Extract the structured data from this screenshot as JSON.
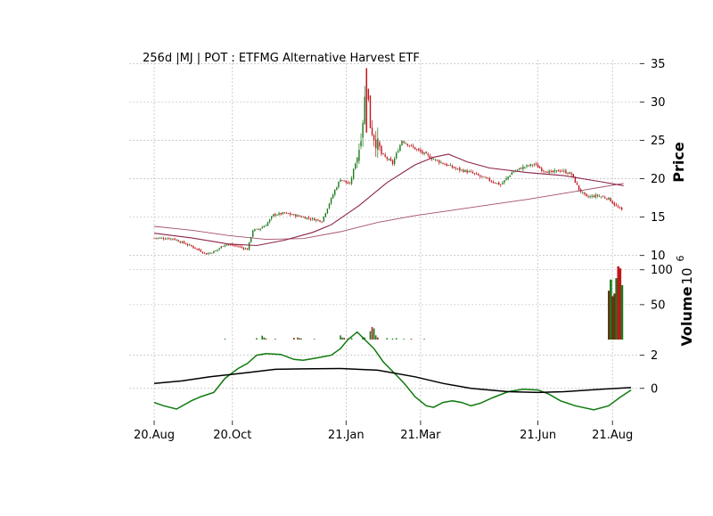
{
  "chart_data": [
    {
      "panel": "price",
      "type": "candlestick",
      "title": "256d |MJ | POT : ETFMG Alternative Harvest ETF",
      "ylabel": "Price",
      "ylim": [
        9.5,
        35.5
      ],
      "yticks": [
        10,
        15,
        20,
        25,
        30,
        35
      ],
      "xticks": [
        {
          "label": "20.Aug",
          "x": 0
        },
        {
          "label": "20.Oct",
          "x": 42
        },
        {
          "label": "21.Jan",
          "x": 103
        },
        {
          "label": "21.Mar",
          "x": 143
        },
        {
          "label": "21.Jun",
          "x": 206
        },
        {
          "label": "21.Aug",
          "x": 246
        }
      ],
      "xlim": [
        -1,
        256
      ],
      "grid": true,
      "close_series": [
        [
          0,
          12.3
        ],
        [
          10,
          12.2
        ],
        [
          20,
          11.2
        ],
        [
          28,
          10.2
        ],
        [
          33,
          10.6
        ],
        [
          38,
          11.5
        ],
        [
          45,
          11.2
        ],
        [
          50,
          10.8
        ],
        [
          53,
          13.3
        ],
        [
          56,
          13.4
        ],
        [
          60,
          14.0
        ],
        [
          64,
          15.3
        ],
        [
          70,
          15.5
        ],
        [
          80,
          15.0
        ],
        [
          90,
          14.5
        ],
        [
          94,
          16.8
        ],
        [
          97,
          18.5
        ],
        [
          100,
          20.0
        ],
        [
          105,
          19.2
        ],
        [
          110,
          24.0
        ],
        [
          112,
          27.8
        ],
        [
          114,
          33.0
        ],
        [
          116,
          27.0
        ],
        [
          118,
          25.5
        ],
        [
          122,
          23.2
        ],
        [
          128,
          22.0
        ],
        [
          133,
          25.0
        ],
        [
          138,
          24.2
        ],
        [
          143,
          23.5
        ],
        [
          148,
          22.8
        ],
        [
          155,
          22.0
        ],
        [
          162,
          21.3
        ],
        [
          170,
          20.8
        ],
        [
          178,
          20.0
        ],
        [
          186,
          19.2
        ],
        [
          192,
          20.8
        ],
        [
          198,
          21.5
        ],
        [
          204,
          21.9
        ],
        [
          208,
          21.2
        ],
        [
          213,
          20.8
        ],
        [
          218,
          21.1
        ],
        [
          224,
          20.6
        ],
        [
          228,
          18.6
        ],
        [
          232,
          17.6
        ],
        [
          238,
          17.8
        ],
        [
          244,
          17.4
        ],
        [
          248,
          16.4
        ],
        [
          251,
          15.9
        ]
      ],
      "moving_averages": [
        {
          "points": [
            [
              0,
              13.8
            ],
            [
              20,
              13.3
            ],
            [
              40,
              12.6
            ],
            [
              60,
              12.1
            ],
            [
              80,
              12.2
            ],
            [
              100,
              13.1
            ],
            [
              120,
              14.3
            ],
            [
              140,
              15.2
            ],
            [
              160,
              15.9
            ],
            [
              180,
              16.6
            ],
            [
              200,
              17.3
            ],
            [
              220,
              18.1
            ],
            [
              240,
              18.9
            ],
            [
              252,
              19.4
            ]
          ]
        },
        {
          "points": [
            [
              0,
              12.9
            ],
            [
              20,
              12.3
            ],
            [
              40,
              11.5
            ],
            [
              55,
              11.3
            ],
            [
              70,
              12.0
            ],
            [
              85,
              13.0
            ],
            [
              95,
              14.0
            ],
            [
              110,
              16.5
            ],
            [
              125,
              19.5
            ],
            [
              140,
              21.8
            ],
            [
              150,
              22.8
            ],
            [
              158,
              23.2
            ],
            [
              168,
              22.2
            ],
            [
              180,
              21.4
            ],
            [
              200,
              20.8
            ],
            [
              220,
              20.4
            ],
            [
              240,
              19.6
            ],
            [
              252,
              19.1
            ]
          ]
        }
      ],
      "colors": {
        "up": "#1a7a1a",
        "down": "#c0161d",
        "ma": "#8b2346",
        "grid": "#b0b0b0"
      }
    },
    {
      "panel": "volume",
      "type": "bar",
      "ylabel": "Volume",
      "scale_label": "10",
      "scale_exponent": "6",
      "ylim": [
        0,
        115
      ],
      "yticks": [
        50,
        100
      ],
      "bars": [
        [
          38,
          1.2
        ],
        [
          55,
          2.0
        ],
        [
          58,
          5.5
        ],
        [
          59,
          3.0
        ],
        [
          60,
          1.5
        ],
        [
          65,
          1.2
        ],
        [
          75,
          2.5
        ],
        [
          77,
          3.0
        ],
        [
          78,
          2.0
        ],
        [
          79,
          1.5
        ],
        [
          86,
          1.0
        ],
        [
          100,
          6.0
        ],
        [
          101,
          3.0
        ],
        [
          102,
          2.5
        ],
        [
          104,
          1.5
        ],
        [
          106,
          2.0
        ],
        [
          112,
          4.0
        ],
        [
          113,
          3.0
        ],
        [
          116,
          12.0
        ],
        [
          117,
          18.0
        ],
        [
          118,
          16.0
        ],
        [
          119,
          6.0
        ],
        [
          120,
          3.0
        ],
        [
          125,
          2.0
        ],
        [
          128,
          1.5
        ],
        [
          130,
          2.0
        ],
        [
          134,
          1.0
        ],
        [
          138,
          1.2
        ],
        [
          145,
          1.0
        ]
      ],
      "recent_bars": [
        {
          "value": 70,
          "color": "#6b3014"
        },
        {
          "value": 86,
          "color": "#1a7a1a"
        },
        {
          "value": 62,
          "color": "#6b3014"
        },
        {
          "value": 66,
          "color": "#6b3014"
        },
        {
          "value": 88,
          "color": "#1a7a1a"
        },
        {
          "value": 105,
          "color": "#c0161d"
        },
        {
          "value": 102,
          "color": "#c0161d"
        },
        {
          "value": 78,
          "color": "#1a7a1a"
        }
      ],
      "recent_bars_start": 244
    },
    {
      "panel": "oscillator",
      "type": "line",
      "ylim": [
        -1.95,
        2.95
      ],
      "yticks": [
        0,
        2
      ],
      "series": [
        {
          "color": "#0f7a0f",
          "points": [
            [
              0,
              -0.85
            ],
            [
              5,
              -1.05
            ],
            [
              12,
              -1.25
            ],
            [
              20,
              -0.75
            ],
            [
              25,
              -0.5
            ],
            [
              32,
              -0.25
            ],
            [
              38,
              0.6
            ],
            [
              45,
              1.2
            ],
            [
              50,
              1.5
            ],
            [
              55,
              2.0
            ],
            [
              60,
              2.1
            ],
            [
              68,
              2.05
            ],
            [
              75,
              1.75
            ],
            [
              80,
              1.7
            ],
            [
              88,
              1.85
            ],
            [
              95,
              2.0
            ],
            [
              100,
              2.4
            ],
            [
              104,
              2.95
            ],
            [
              109,
              3.4
            ],
            [
              113,
              2.95
            ],
            [
              118,
              2.4
            ],
            [
              123,
              1.6
            ],
            [
              130,
              0.8
            ],
            [
              135,
              0.2
            ],
            [
              140,
              -0.5
            ],
            [
              146,
              -1.05
            ],
            [
              150,
              -1.15
            ],
            [
              155,
              -0.85
            ],
            [
              160,
              -0.75
            ],
            [
              165,
              -0.85
            ],
            [
              170,
              -1.05
            ],
            [
              175,
              -0.9
            ],
            [
              182,
              -0.55
            ],
            [
              190,
              -0.2
            ],
            [
              198,
              -0.05
            ],
            [
              206,
              -0.1
            ],
            [
              212,
              -0.35
            ],
            [
              218,
              -0.75
            ],
            [
              226,
              -1.05
            ],
            [
              236,
              -1.3
            ],
            [
              244,
              -1.05
            ],
            [
              250,
              -0.55
            ],
            [
              256,
              -0.1
            ]
          ]
        },
        {
          "color": "#000000",
          "points": [
            [
              0,
              0.3
            ],
            [
              15,
              0.45
            ],
            [
              30,
              0.7
            ],
            [
              50,
              0.95
            ],
            [
              65,
              1.15
            ],
            [
              80,
              1.18
            ],
            [
              100,
              1.2
            ],
            [
              120,
              1.1
            ],
            [
              140,
              0.7
            ],
            [
              155,
              0.3
            ],
            [
              170,
              0.0
            ],
            [
              190,
              -0.2
            ],
            [
              206,
              -0.25
            ],
            [
              220,
              -0.2
            ],
            [
              240,
              -0.05
            ],
            [
              256,
              0.05
            ]
          ]
        }
      ]
    }
  ]
}
